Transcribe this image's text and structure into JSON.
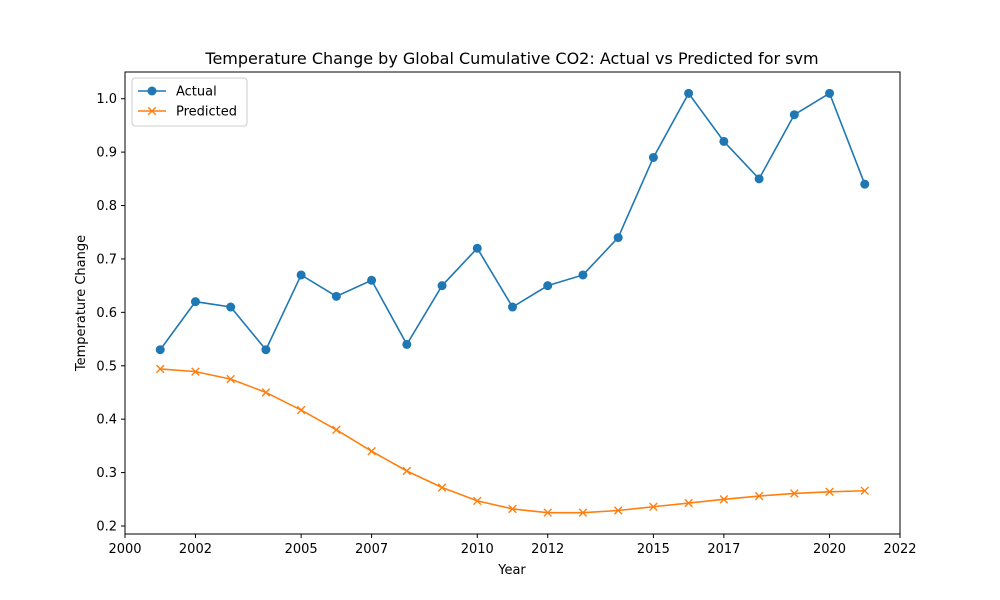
{
  "chart_data": {
    "type": "line",
    "title": "Temperature Change by Global Cumulative CO2: Actual vs Predicted for svm",
    "xlabel": "Year",
    "ylabel": "Temperature Change",
    "xlim": [
      2000,
      2022
    ],
    "ylim": [
      0.185,
      1.05
    ],
    "x_ticks": [
      2000,
      2002,
      2005,
      2007,
      2010,
      2012,
      2015,
      2017,
      2020,
      2022
    ],
    "x_tick_labels": [
      "2000",
      "2002",
      "2005",
      "2007",
      "2010",
      "2012",
      "2015",
      "2017",
      "2020",
      "2022"
    ],
    "y_ticks": [
      0.2,
      0.3,
      0.4,
      0.5,
      0.6,
      0.7,
      0.8,
      0.9,
      1.0
    ],
    "y_tick_labels": [
      "0.2",
      "0.3",
      "0.4",
      "0.5",
      "0.6",
      "0.7",
      "0.8",
      "0.9",
      "1.0"
    ],
    "x": [
      2001,
      2002,
      2003,
      2004,
      2005,
      2006,
      2007,
      2008,
      2009,
      2010,
      2011,
      2012,
      2013,
      2014,
      2015,
      2016,
      2017,
      2018,
      2019,
      2020,
      2021
    ],
    "series": [
      {
        "name": "Actual",
        "color": "#1f77b4",
        "marker": "circle",
        "values": [
          0.53,
          0.62,
          0.61,
          0.53,
          0.67,
          0.63,
          0.66,
          0.54,
          0.65,
          0.72,
          0.61,
          0.65,
          0.67,
          0.74,
          0.89,
          1.01,
          0.92,
          0.85,
          0.97,
          1.01,
          0.84
        ]
      },
      {
        "name": "Predicted",
        "color": "#ff7f0e",
        "marker": "x",
        "values": [
          0.494,
          0.489,
          0.475,
          0.45,
          0.417,
          0.38,
          0.34,
          0.303,
          0.272,
          0.247,
          0.232,
          0.225,
          0.225,
          0.229,
          0.236,
          0.243,
          0.25,
          0.256,
          0.261,
          0.264,
          0.266
        ]
      }
    ],
    "grid": false,
    "legend_position": "top-left"
  }
}
